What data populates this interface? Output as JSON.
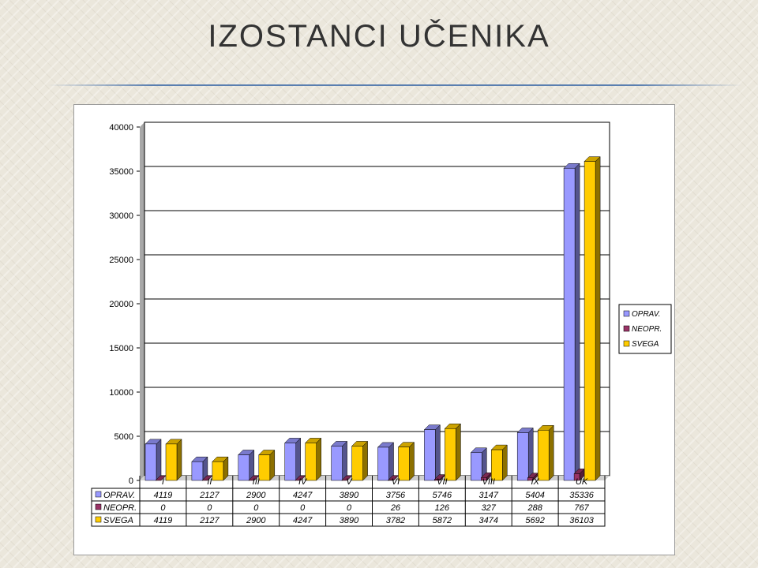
{
  "slide": {
    "title": "IZOSTANCI UČENIKA"
  },
  "chart_data": {
    "type": "bar",
    "categories": [
      "I",
      "II",
      "III",
      "IV",
      "V",
      "VI",
      "VII",
      "VIII",
      "IX",
      "UK"
    ],
    "series": [
      {
        "name": "OPRAV.",
        "color": "#9999ff",
        "values": [
          4119,
          2127,
          2900,
          4247,
          3890,
          3756,
          5746,
          3147,
          5404,
          35336
        ]
      },
      {
        "name": "NEOPR.",
        "color": "#993366",
        "values": [
          0,
          0,
          0,
          0,
          0,
          26,
          126,
          327,
          288,
          767
        ]
      },
      {
        "name": "SVEGA",
        "color": "#ffcc00",
        "values": [
          4119,
          2127,
          2900,
          4247,
          3890,
          3782,
          5872,
          3474,
          5692,
          36103
        ]
      }
    ],
    "ylim": [
      0,
      40000
    ],
    "yticks": [
      "0",
      "5000",
      "10000",
      "15000",
      "20000",
      "25000",
      "30000",
      "35000",
      "40000"
    ],
    "grid": true,
    "legend": "right",
    "data_table": true
  }
}
